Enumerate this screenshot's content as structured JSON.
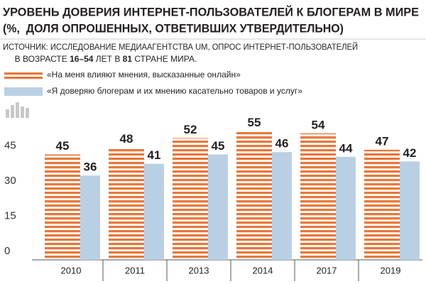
{
  "chart_data": {
    "type": "bar",
    "title_lines": [
      "УРОВЕНЬ ДОВЕРИЯ ИНТЕРНЕТ-ПОЛЬЗОВАТЕЛЕЙ К БЛОГЕРАМ В МИРЕ",
      "(%,  ДОЛЯ ОПРОШЕННЫХ, ОТВЕТИВШИХ УТВЕРДИТЕЛЬНО)"
    ],
    "source_line1": "ИСТОЧНИК: ИССЛЕДОВАНИЕ МЕДИААГЕНТСТВА UM, ОПРОС ИНТЕРНЕТ-ПОЛЬЗОВАТЕЛЕЙ",
    "source_line2_parts": [
      "В ВОЗРАСТЕ ",
      "16–54",
      " ЛЕТ В ",
      "81",
      " СТРАНЕ МИРА."
    ],
    "categories": [
      "2010",
      "2011",
      "2013",
      "2014",
      "2017",
      "2019"
    ],
    "series": [
      {
        "name": "«На меня влияют мнения, высказанные онлайн»",
        "color": "#e8773a",
        "values": [
          45,
          48,
          52,
          55,
          54,
          47
        ]
      },
      {
        "name": "«Я доверяю блогерам и их мнению касательно товаров и услуг»",
        "color": "#b9d0e4",
        "values": [
          36,
          41,
          45,
          46,
          44,
          42
        ]
      }
    ],
    "ylim": [
      0,
      60
    ],
    "yticks": [
      0,
      15,
      30,
      45
    ],
    "grid": false
  }
}
